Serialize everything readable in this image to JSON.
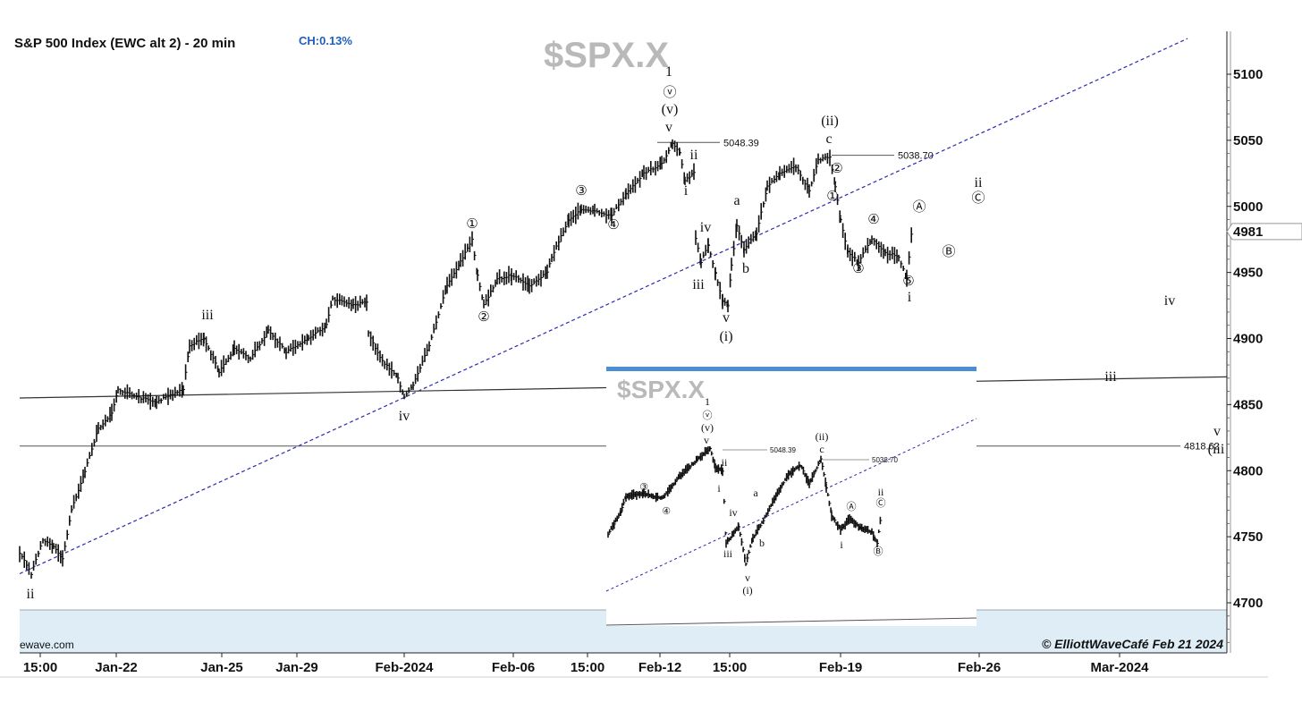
{
  "chart_data": {
    "type": "line",
    "title": "S&P 500 Index (EWC alt 2) - 20 min",
    "change_label": "CH:0.13%",
    "symbol": "$SPX.X",
    "source": "ewave.com",
    "credit": "© ElliottWaveCafé Feb 21 2024",
    "xlabel": "",
    "ylabel": "",
    "ylim": [
      4670,
      5130
    ],
    "y_ticks": [
      "5100",
      "5050",
      "5000",
      "4950",
      "4900",
      "4850",
      "4800",
      "4750",
      "4700"
    ],
    "y_tick_values": [
      5100,
      5050,
      5000,
      4950,
      4900,
      4850,
      4800,
      4750,
      4700
    ],
    "last_price_label": "4981",
    "last_price": 4981,
    "x_ticks": [
      "15:00",
      "Jan-22",
      "Jan-25",
      "Jan-29",
      "Feb-2024",
      "Feb-06",
      "15:00",
      "Feb-12",
      "15:00",
      "Feb-19",
      "Feb-26",
      "Mar-2024"
    ],
    "x_tick_positions": [
      45,
      130,
      248,
      332,
      452,
      574,
      657,
      738,
      816,
      940,
      1095,
      1252
    ],
    "series": [
      {
        "values": [
          [
            22,
            4738
          ],
          [
            35,
            4722
          ],
          [
            48,
            4748
          ],
          [
            60,
            4742
          ],
          [
            70,
            4733
          ],
          [
            80,
            4770
          ],
          [
            95,
            4800
          ],
          [
            110,
            4832
          ],
          [
            125,
            4843
          ],
          [
            132,
            4862
          ],
          [
            150,
            4856
          ],
          [
            175,
            4852
          ],
          [
            205,
            4862
          ],
          [
            212,
            4895
          ],
          [
            228,
            4900
          ],
          [
            245,
            4875
          ],
          [
            262,
            4892
          ],
          [
            280,
            4885
          ],
          [
            300,
            4906
          ],
          [
            320,
            4890
          ],
          [
            345,
            4900
          ],
          [
            365,
            4910
          ],
          [
            372,
            4930
          ],
          [
            395,
            4925
          ],
          [
            410,
            4928
          ],
          [
            412,
            4905
          ],
          [
            425,
            4885
          ],
          [
            445,
            4870
          ],
          [
            452,
            4855
          ],
          [
            462,
            4865
          ],
          [
            480,
            4895
          ],
          [
            500,
            4940
          ],
          [
            515,
            4958
          ],
          [
            528,
            4975
          ],
          [
            534,
            4948
          ],
          [
            541,
            4925
          ],
          [
            556,
            4945
          ],
          [
            572,
            4948
          ],
          [
            592,
            4940
          ],
          [
            612,
            4950
          ],
          [
            617,
            4962
          ],
          [
            636,
            4990
          ],
          [
            650,
            4997
          ],
          [
            665,
            4996
          ],
          [
            684,
            4993
          ],
          [
            700,
            5010
          ],
          [
            720,
            5025
          ],
          [
            740,
            5032
          ],
          [
            752,
            5048
          ],
          [
            760,
            5040
          ],
          [
            766,
            5020
          ],
          [
            776,
            5025
          ],
          [
            778,
            4975
          ],
          [
            784,
            4958
          ],
          [
            792,
            4971
          ],
          [
            800,
            4950
          ],
          [
            808,
            4928
          ],
          [
            814,
            4925
          ],
          [
            818,
            4955
          ],
          [
            824,
            4985
          ],
          [
            832,
            4967
          ],
          [
            846,
            4980
          ],
          [
            858,
            5015
          ],
          [
            872,
            5025
          ],
          [
            890,
            5030
          ],
          [
            905,
            5012
          ],
          [
            915,
            5035
          ],
          [
            928,
            5038
          ],
          [
            934,
            5015
          ],
          [
            940,
            4990
          ],
          [
            948,
            4965
          ],
          [
            960,
            4958
          ],
          [
            975,
            4976
          ],
          [
            990,
            4965
          ],
          [
            1005,
            4962
          ],
          [
            1014,
            4945
          ],
          [
            1020,
            4985
          ]
        ]
      }
    ],
    "trend_lines": [
      {
        "from": [
          22,
          4722
        ],
        "to": [
          1328,
          5127
        ],
        "style": "dashed",
        "color": "#2a2ab0"
      },
      {
        "from": [
          22,
          4855
        ],
        "to": [
          1372,
          4871
        ],
        "style": "solid",
        "color": "#333333"
      }
    ],
    "horizontal_levels": [
      {
        "label": "5048.39",
        "value": 5048.39,
        "x_from": 735,
        "x_to": 805
      },
      {
        "label": "5038.70",
        "value": 5038.7,
        "x_from": 930,
        "x_to": 1000
      },
      {
        "label": "4818.62",
        "value": 4818.62,
        "x_from": 22,
        "x_to": 1320
      }
    ],
    "wave_labels": [
      {
        "text": "ii",
        "x": 34,
        "y": 669
      },
      {
        "text": "iii",
        "x": 232,
        "y": 357
      },
      {
        "text": "iv",
        "x": 452,
        "y": 470
      },
      {
        "text": "①",
        "x": 528,
        "y": 255,
        "circled": true
      },
      {
        "text": "②",
        "x": 541,
        "y": 359,
        "circled": true
      },
      {
        "text": "③",
        "x": 650,
        "y": 218,
        "circled": true
      },
      {
        "text": "④",
        "x": 686,
        "y": 256,
        "circled": true
      },
      {
        "text": "1",
        "x": 748,
        "y": 85
      },
      {
        "text": "ⓥ",
        "x": 749,
        "y": 108,
        "circled": true
      },
      {
        "text": "(v)",
        "x": 749,
        "y": 127
      },
      {
        "text": "v",
        "x": 748,
        "y": 147
      },
      {
        "text": "ii",
        "x": 776,
        "y": 178
      },
      {
        "text": "i",
        "x": 767,
        "y": 218
      },
      {
        "text": "iv",
        "x": 789,
        "y": 259
      },
      {
        "text": "iii",
        "x": 781,
        "y": 323
      },
      {
        "text": "v",
        "x": 812,
        "y": 360
      },
      {
        "text": "(i)",
        "x": 812,
        "y": 381
      },
      {
        "text": "a",
        "x": 824,
        "y": 229
      },
      {
        "text": "b",
        "x": 834,
        "y": 305
      },
      {
        "text": "(ii)",
        "x": 928,
        "y": 140
      },
      {
        "text": "c",
        "x": 927,
        "y": 160
      },
      {
        "text": "②",
        "x": 936,
        "y": 193,
        "circled": true
      },
      {
        "text": "①",
        "x": 931,
        "y": 224,
        "circled": true
      },
      {
        "text": "④",
        "x": 977,
        "y": 250,
        "circled": true
      },
      {
        "text": "③",
        "x": 960,
        "y": 305,
        "circled": true
      },
      {
        "text": "⑤",
        "x": 1016,
        "y": 319,
        "circled": true
      },
      {
        "text": "i",
        "x": 1017,
        "y": 337
      },
      {
        "text": "Ⓐ",
        "x": 1028,
        "y": 236,
        "circled": true
      },
      {
        "text": "Ⓑ",
        "x": 1061,
        "y": 286,
        "circled": true
      },
      {
        "text": "ii",
        "x": 1094,
        "y": 209
      },
      {
        "text": "Ⓒ",
        "x": 1094,
        "y": 226,
        "circled": true
      },
      {
        "text": "iv",
        "x": 1308,
        "y": 341
      },
      {
        "text": "iii",
        "x": 1242,
        "y": 426
      },
      {
        "text": "v",
        "x": 1361,
        "y": 487
      },
      {
        "text": "(iii",
        "x": 1360,
        "y": 507
      }
    ],
    "inset": {
      "symbol": "$SPX.X",
      "values": [
        [
          680,
          4738
        ],
        [
          694,
          4758
        ],
        [
          700,
          4772
        ],
        [
          720,
          4775
        ],
        [
          740,
          4770
        ],
        [
          760,
          4790
        ],
        [
          780,
          4805
        ],
        [
          794,
          4815
        ],
        [
          800,
          4798
        ],
        [
          808,
          4795
        ],
        [
          812,
          4730
        ],
        [
          826,
          4745
        ],
        [
          834,
          4712
        ],
        [
          842,
          4735
        ],
        [
          852,
          4748
        ],
        [
          866,
          4770
        ],
        [
          880,
          4790
        ],
        [
          895,
          4800
        ],
        [
          905,
          4783
        ],
        [
          918,
          4806
        ],
        [
          924,
          4780
        ],
        [
          930,
          4755
        ],
        [
          940,
          4742
        ],
        [
          950,
          4752
        ],
        [
          962,
          4744
        ],
        [
          975,
          4740
        ],
        [
          981,
          4730
        ],
        [
          986,
          4760
        ]
      ],
      "levels": [
        {
          "label": "5048.39",
          "x_from": 808,
          "x_to": 858
        },
        {
          "label": "5038.70",
          "x_from": 920,
          "x_to": 972
        }
      ],
      "labels": [
        {
          "text": "1",
          "x": 791,
          "y": 453
        },
        {
          "text": "ⓥ",
          "x": 791,
          "y": 468,
          "circled": true
        },
        {
          "text": "(v)",
          "x": 791,
          "y": 482
        },
        {
          "text": "v",
          "x": 790,
          "y": 496
        },
        {
          "text": "ii",
          "x": 810,
          "y": 521
        },
        {
          "text": "i",
          "x": 804,
          "y": 550
        },
        {
          "text": "③",
          "x": 720,
          "y": 548,
          "circled": true
        },
        {
          "text": "④",
          "x": 745,
          "y": 575,
          "circled": true
        },
        {
          "text": "iv",
          "x": 820,
          "y": 577
        },
        {
          "text": "iii",
          "x": 814,
          "y": 623
        },
        {
          "text": "a",
          "x": 845,
          "y": 555
        },
        {
          "text": "b",
          "x": 852,
          "y": 611
        },
        {
          "text": "v",
          "x": 836,
          "y": 650
        },
        {
          "text": "(i)",
          "x": 836,
          "y": 664
        },
        {
          "text": "(ii)",
          "x": 919,
          "y": 492
        },
        {
          "text": "c",
          "x": 919,
          "y": 506
        },
        {
          "text": "Ⓐ",
          "x": 952,
          "y": 570,
          "circled": true
        },
        {
          "text": "i",
          "x": 941,
          "y": 613
        },
        {
          "text": "ii",
          "x": 985,
          "y": 554
        },
        {
          "text": "Ⓒ",
          "x": 985,
          "y": 566,
          "circled": true
        },
        {
          "text": "Ⓑ",
          "x": 982,
          "y": 620,
          "circled": true
        }
      ]
    }
  }
}
